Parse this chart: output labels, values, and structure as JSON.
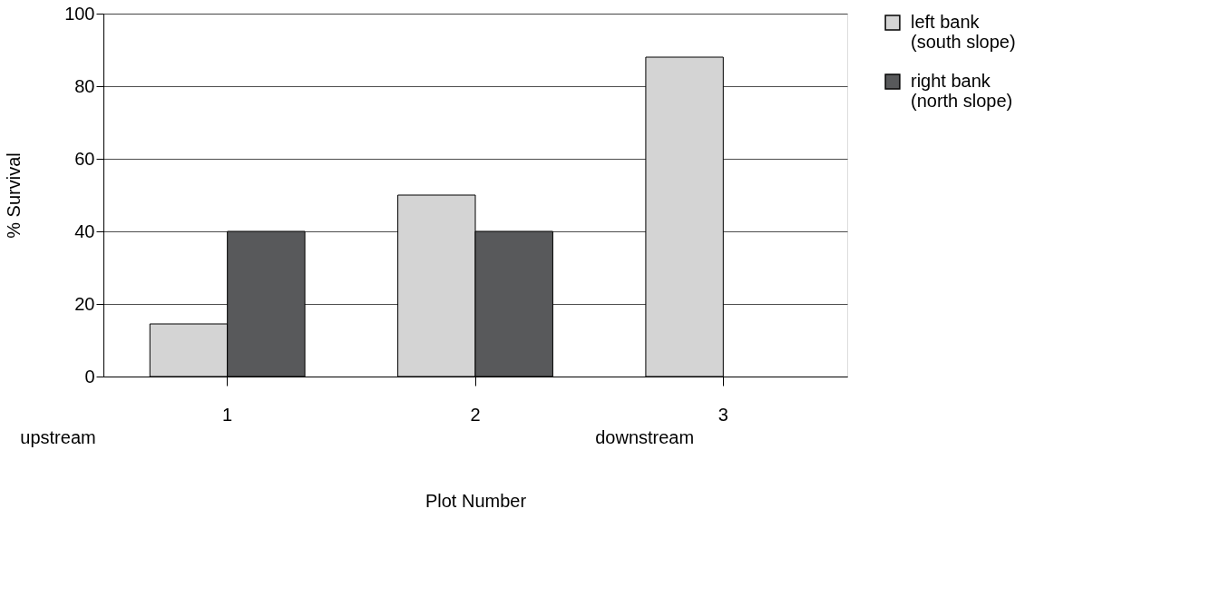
{
  "chart_data": {
    "type": "bar",
    "xlabel": "Plot Number",
    "ylabel": "% Survival",
    "categories": [
      "1",
      "2",
      "3"
    ],
    "series": [
      {
        "name": "left bank\n(south slope)",
        "color": "#d4d4d4",
        "values": [
          14.5,
          50,
          88
        ]
      },
      {
        "name": "right bank\n(north slope)",
        "color": "#58595b",
        "values": [
          40,
          40,
          null
        ]
      }
    ],
    "ylim": [
      0,
      100
    ],
    "yticks": [
      0,
      20,
      40,
      60,
      80,
      100
    ],
    "grid": "y",
    "legend": "right",
    "annotations": [
      "upstream",
      "downstream"
    ]
  }
}
